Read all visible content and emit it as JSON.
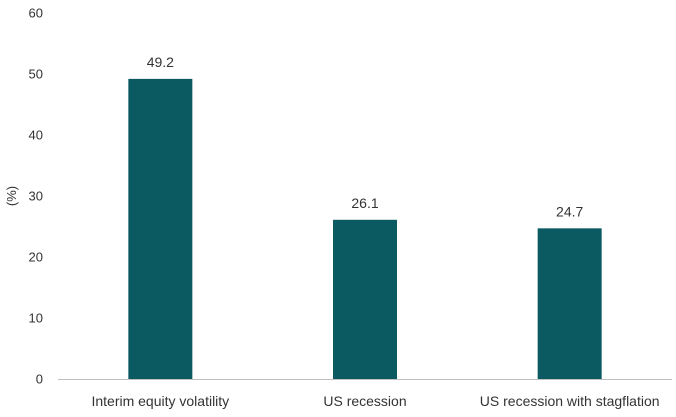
{
  "chart_data": {
    "type": "bar",
    "categories": [
      "Interim equity volatility",
      "US recession",
      "US recession with stagflation"
    ],
    "values": [
      49.2,
      26.1,
      24.7
    ],
    "data_labels": [
      "49.2",
      "26.1",
      "24.7"
    ],
    "title": "",
    "xlabel": "",
    "ylabel": "(%)",
    "ylim": [
      0,
      60
    ],
    "yticks": [
      "0",
      "10",
      "20",
      "30",
      "40",
      "50",
      "60"
    ],
    "grid": false,
    "legend": "none",
    "bar_color": "#0b5a62",
    "axis_color": "#bfbfbf",
    "text_color": "#333333"
  }
}
